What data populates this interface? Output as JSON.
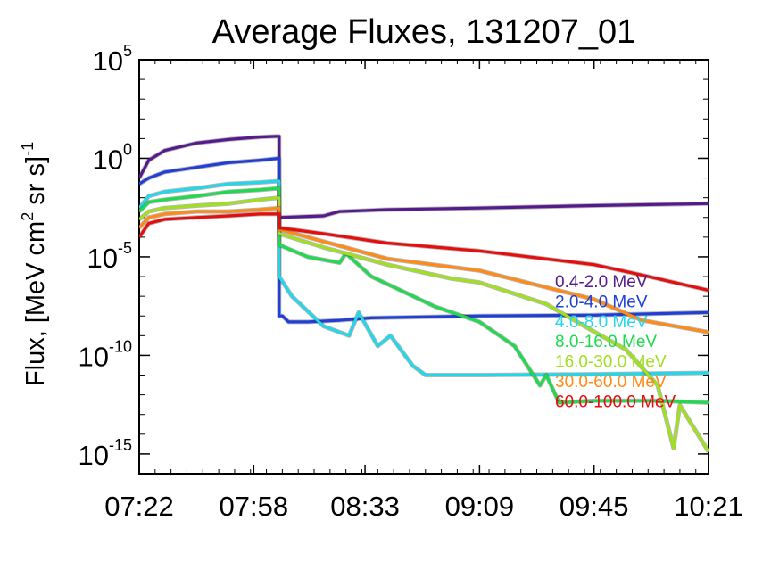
{
  "chart_data": {
    "type": "line",
    "title": "Average Fluxes, 131207_01",
    "xlabel": "",
    "ylabel": "Flux, [MeV cm2 sr s]-1",
    "ylabel_parts": [
      "Flux, [MeV cm",
      "2",
      " sr s]",
      "-1"
    ],
    "y_scale": "log",
    "ylim": [
      1e-16,
      100000.0
    ],
    "xlim": [
      "07:22",
      "10:21"
    ],
    "x_ticks": [
      "07:22",
      "07:58",
      "08:33",
      "09:09",
      "09:45",
      "10:21"
    ],
    "y_ticks": [
      {
        "base": "10",
        "exp": "5"
      },
      {
        "base": "10",
        "exp": "0"
      },
      {
        "base": "10",
        "exp": "-5"
      },
      {
        "base": "10",
        "exp": "-10"
      },
      {
        "base": "10",
        "exp": "-15"
      }
    ],
    "legend_position": "lower-right",
    "series": [
      {
        "name": "0.4-2.0 MeV",
        "color": "#551a8b",
        "points": [
          [
            "07:22",
            0.1
          ],
          [
            "07:25",
            0.8
          ],
          [
            "07:30",
            2.5
          ],
          [
            "07:40",
            6
          ],
          [
            "07:50",
            9
          ],
          [
            "08:00",
            12
          ],
          [
            "08:05",
            13
          ],
          [
            "08:06",
            13
          ],
          [
            "08:06",
            0.001
          ],
          [
            "08:20",
            0.0012
          ],
          [
            "08:25",
            0.002
          ],
          [
            "08:40",
            0.0025
          ],
          [
            "09:09",
            0.003
          ],
          [
            "09:45",
            0.004
          ],
          [
            "10:21",
            0.005
          ]
        ]
      },
      {
        "name": "2.0-4.0 MeV",
        "color": "#1f3fd6",
        "points": [
          [
            "07:22",
            0.05
          ],
          [
            "07:25",
            0.1
          ],
          [
            "07:30",
            0.2
          ],
          [
            "07:40",
            0.35
          ],
          [
            "07:50",
            0.6
          ],
          [
            "08:00",
            0.8
          ],
          [
            "08:06",
            1
          ],
          [
            "08:06",
            1e-08
          ],
          [
            "08:07",
            1e-08
          ],
          [
            "08:09",
            5e-09
          ],
          [
            "08:15",
            5e-09
          ],
          [
            "08:25",
            6e-09
          ],
          [
            "08:35",
            8e-09
          ],
          [
            "09:09",
            1e-08
          ],
          [
            "09:45",
            1.1e-08
          ],
          [
            "10:21",
            1.5e-08
          ]
        ]
      },
      {
        "name": "4.0-8.0 MeV",
        "color": "#22d7ea",
        "points": [
          [
            "07:22",
            0.003
          ],
          [
            "07:25",
            0.012
          ],
          [
            "07:30",
            0.02
          ],
          [
            "07:40",
            0.03
          ],
          [
            "07:50",
            0.05
          ],
          [
            "08:00",
            0.06
          ],
          [
            "08:06",
            0.07
          ],
          [
            "08:06",
            1e-06
          ],
          [
            "08:10",
            1e-07
          ],
          [
            "08:20",
            3e-09
          ],
          [
            "08:28",
            1e-09
          ],
          [
            "08:31",
            1.5e-08
          ],
          [
            "08:37",
            3e-10
          ],
          [
            "08:41",
            1e-09
          ],
          [
            "08:48",
            3e-11
          ],
          [
            "08:52",
            1e-11
          ],
          [
            "09:09",
            1e-11
          ],
          [
            "09:45",
            1.1e-11
          ],
          [
            "10:21",
            1.3e-11
          ]
        ]
      },
      {
        "name": "8.0-16.0 MeV",
        "color": "#1fd94f",
        "points": [
          [
            "07:22",
            0.002
          ],
          [
            "07:25",
            0.006
          ],
          [
            "07:30",
            0.008
          ],
          [
            "07:40",
            0.012
          ],
          [
            "07:50",
            0.02
          ],
          [
            "08:00",
            0.025
          ],
          [
            "08:06",
            0.03
          ],
          [
            "08:06",
            4e-05
          ],
          [
            "08:15",
            1e-05
          ],
          [
            "08:25",
            5e-06
          ],
          [
            "08:27",
            1.5e-05
          ],
          [
            "08:35",
            1e-06
          ],
          [
            "08:55",
            3e-08
          ],
          [
            "09:09",
            5e-09
          ],
          [
            "09:20",
            3e-10
          ],
          [
            "09:28",
            3e-12
          ],
          [
            "09:30",
            1e-11
          ],
          [
            "09:34",
            4e-13
          ],
          [
            "09:45",
            5e-13
          ],
          [
            "10:05",
            5e-13
          ],
          [
            "10:21",
            4e-13
          ]
        ]
      },
      {
        "name": "16.0-30.0 MeV",
        "color": "#a0e020",
        "points": [
          [
            "07:22",
            0.0008
          ],
          [
            "07:25",
            0.002
          ],
          [
            "07:30",
            0.003
          ],
          [
            "07:40",
            0.004
          ],
          [
            "07:50",
            0.005
          ],
          [
            "08:00",
            0.008
          ],
          [
            "08:06",
            0.01
          ],
          [
            "08:06",
            0.00015
          ],
          [
            "08:20",
            3e-05
          ],
          [
            "08:40",
            4e-06
          ],
          [
            "09:00",
            8e-07
          ],
          [
            "09:09",
            5e-07
          ],
          [
            "09:30",
            4e-08
          ],
          [
            "09:45",
            1.6e-09
          ],
          [
            "09:55",
            2e-10
          ],
          [
            "10:05",
            3e-12
          ],
          [
            "10:10",
            2e-15
          ],
          [
            "10:12",
            3e-13
          ],
          [
            "10:21",
            1.3e-15
          ]
        ]
      },
      {
        "name": "30.0-60.0 MeV",
        "color": "#ff8a14",
        "points": [
          [
            "07:22",
            0.0003
          ],
          [
            "07:25",
            0.001
          ],
          [
            "07:30",
            0.0015
          ],
          [
            "07:40",
            0.002
          ],
          [
            "07:50",
            0.002
          ],
          [
            "08:00",
            0.0025
          ],
          [
            "08:06",
            0.003
          ],
          [
            "08:06",
            0.00025
          ],
          [
            "08:20",
            6e-05
          ],
          [
            "08:40",
            8e-06
          ],
          [
            "09:09",
            2e-06
          ],
          [
            "09:45",
            7e-08
          ],
          [
            "10:00",
            6e-09
          ],
          [
            "10:21",
            1.5e-09
          ]
        ]
      },
      {
        "name": "60.0-100.0 MeV",
        "color": "#e80c0c",
        "points": [
          [
            "07:22",
            0.0001
          ],
          [
            "07:25",
            0.0005
          ],
          [
            "07:30",
            0.0008
          ],
          [
            "07:40",
            0.001
          ],
          [
            "07:50",
            0.0012
          ],
          [
            "08:00",
            0.0015
          ],
          [
            "08:06",
            0.0015
          ],
          [
            "08:06",
            0.0003
          ],
          [
            "08:20",
            0.00015
          ],
          [
            "08:40",
            5e-05
          ],
          [
            "09:09",
            2e-05
          ],
          [
            "09:45",
            4e-06
          ],
          [
            "10:00",
            1.2e-06
          ],
          [
            "10:21",
            2e-07
          ]
        ]
      }
    ]
  }
}
